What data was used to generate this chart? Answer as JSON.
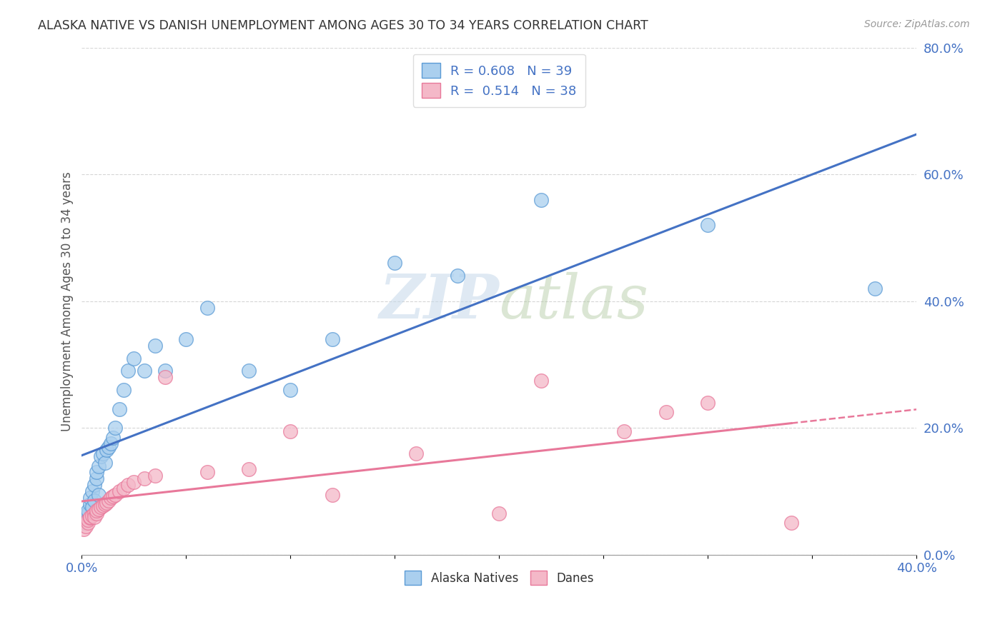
{
  "title": "ALASKA NATIVE VS DANISH UNEMPLOYMENT AMONG AGES 30 TO 34 YEARS CORRELATION CHART",
  "source": "Source: ZipAtlas.com",
  "ylabel": "Unemployment Among Ages 30 to 34 years",
  "xmin": 0.0,
  "xmax": 0.4,
  "ymin": 0.0,
  "ymax": 0.8,
  "alaska_x": [
    0.001,
    0.002,
    0.003,
    0.003,
    0.004,
    0.004,
    0.005,
    0.005,
    0.006,
    0.006,
    0.007,
    0.007,
    0.008,
    0.008,
    0.009,
    0.01,
    0.011,
    0.012,
    0.013,
    0.014,
    0.015,
    0.016,
    0.018,
    0.02,
    0.022,
    0.025,
    0.03,
    0.035,
    0.04,
    0.05,
    0.06,
    0.08,
    0.1,
    0.12,
    0.15,
    0.18,
    0.22,
    0.3,
    0.38
  ],
  "alaska_y": [
    0.05,
    0.06,
    0.065,
    0.07,
    0.08,
    0.09,
    0.075,
    0.1,
    0.085,
    0.11,
    0.12,
    0.13,
    0.095,
    0.14,
    0.155,
    0.16,
    0.145,
    0.165,
    0.17,
    0.175,
    0.185,
    0.2,
    0.23,
    0.26,
    0.29,
    0.31,
    0.29,
    0.33,
    0.29,
    0.34,
    0.39,
    0.29,
    0.26,
    0.34,
    0.46,
    0.44,
    0.56,
    0.52,
    0.42
  ],
  "danish_x": [
    0.001,
    0.002,
    0.003,
    0.003,
    0.004,
    0.004,
    0.005,
    0.006,
    0.006,
    0.007,
    0.007,
    0.008,
    0.009,
    0.01,
    0.011,
    0.012,
    0.013,
    0.014,
    0.015,
    0.016,
    0.018,
    0.02,
    0.022,
    0.025,
    0.03,
    0.035,
    0.04,
    0.06,
    0.08,
    0.1,
    0.12,
    0.16,
    0.2,
    0.22,
    0.26,
    0.28,
    0.3,
    0.34
  ],
  "danish_y": [
    0.04,
    0.045,
    0.05,
    0.055,
    0.058,
    0.06,
    0.062,
    0.065,
    0.06,
    0.065,
    0.07,
    0.072,
    0.075,
    0.078,
    0.08,
    0.082,
    0.085,
    0.09,
    0.092,
    0.095,
    0.1,
    0.105,
    0.11,
    0.115,
    0.12,
    0.125,
    0.28,
    0.13,
    0.135,
    0.195,
    0.095,
    0.16,
    0.065,
    0.275,
    0.195,
    0.225,
    0.24,
    0.05
  ],
  "alaska_color": "#aacfee",
  "danish_color": "#f4b8c8",
  "alaska_edge_color": "#5b9bd5",
  "danish_edge_color": "#e8789a",
  "alaska_line_color": "#4472c4",
  "danish_line_color": "#e8789a",
  "alaska_R": 0.608,
  "alaska_N": 39,
  "danish_R": 0.514,
  "danish_N": 38,
  "watermark_zip": "ZIP",
  "watermark_atlas": "atlas",
  "background_color": "#ffffff",
  "grid_color": "#cccccc",
  "ytick_color": "#4472c4",
  "xtick_label_color": "#4472c4"
}
